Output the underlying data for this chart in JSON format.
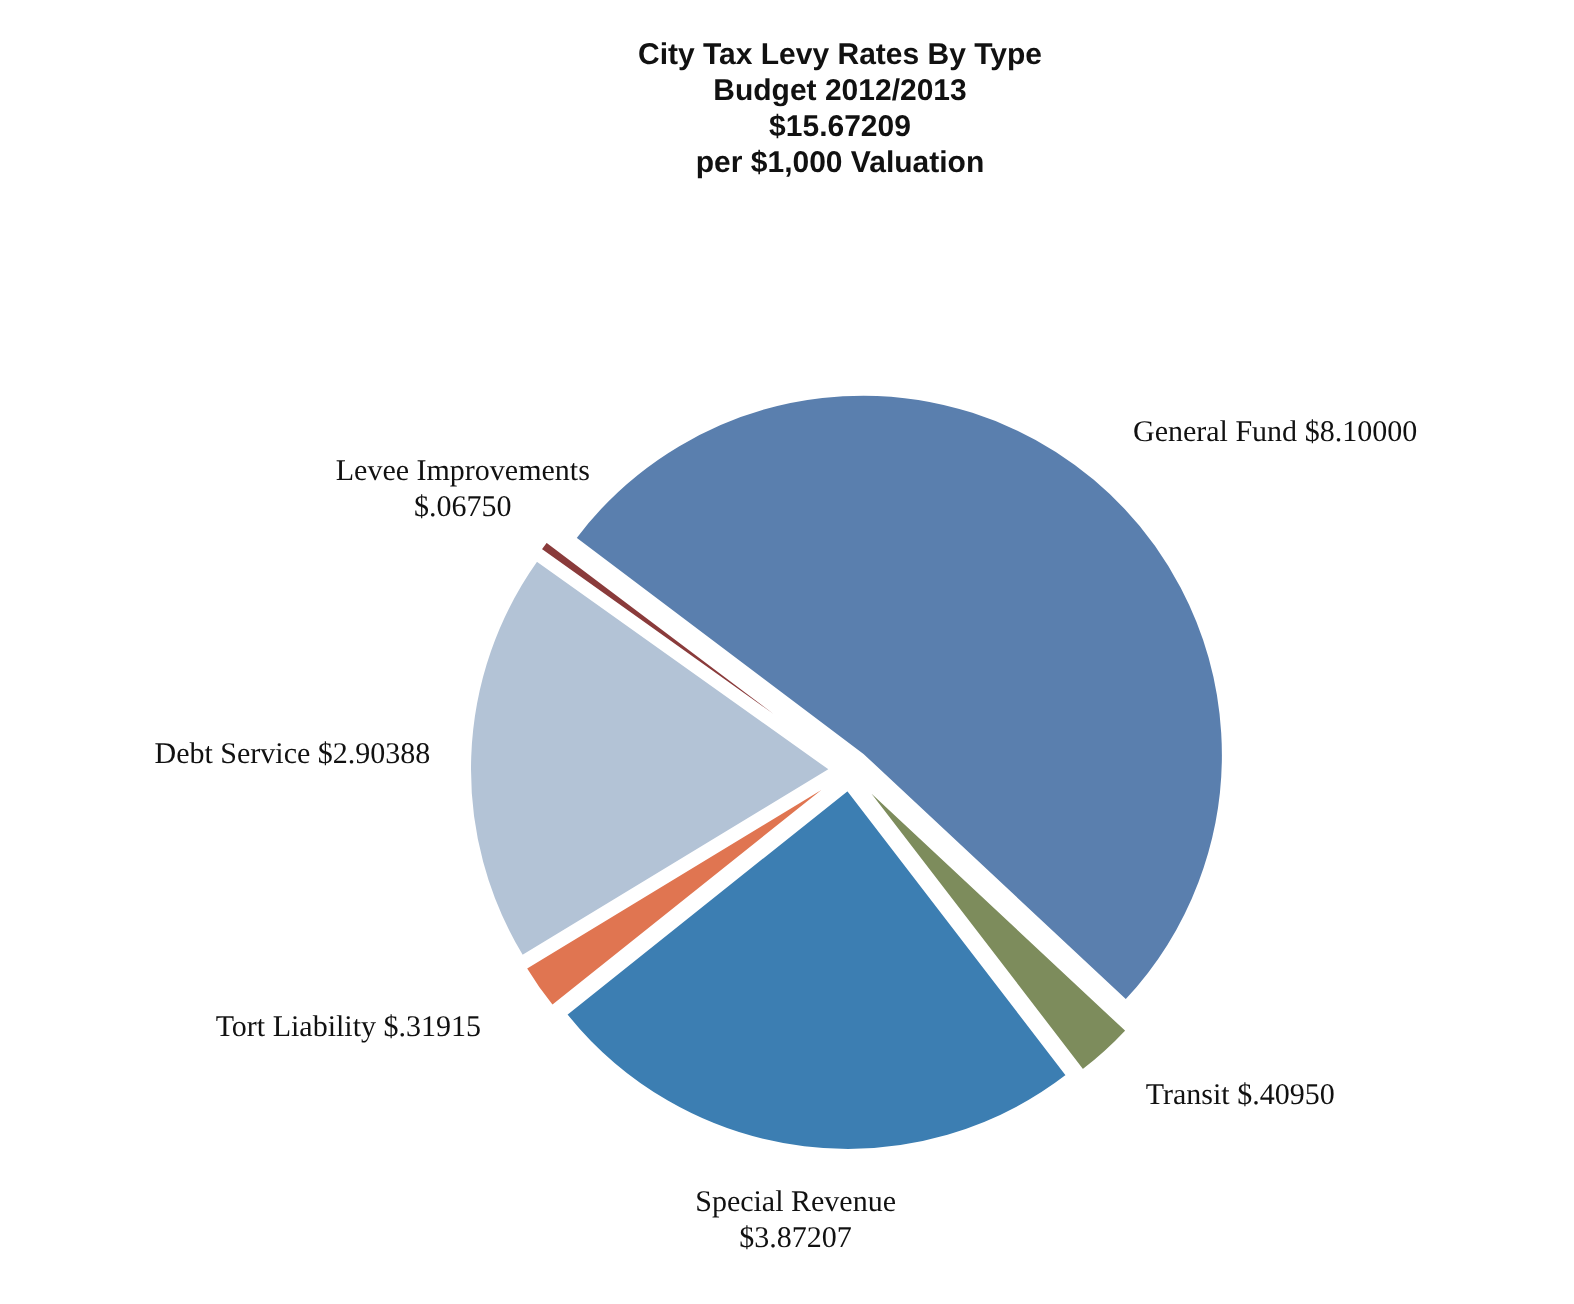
{
  "chart_data": {
    "type": "pie",
    "title": "City Tax Levy Rates By Type",
    "subtitle": "Budget 2012/2013",
    "annotations": [
      "$15.67209",
      "per $1,000 Valuation"
    ],
    "categories": [
      "General Fund",
      "Transit",
      "Special Revenue",
      "Tort Liability",
      "Debt Service",
      "Levee Improvements"
    ],
    "values": [
      8.1,
      0.4095,
      3.87207,
      0.31915,
      2.90388,
      0.0675
    ],
    "value_labels": [
      "$8.10000",
      "$.40950",
      "$3.87207",
      "$.31915",
      "$2.90388",
      "$.06750"
    ],
    "colors": [
      "#5a7fae",
      "#7d8c5c",
      "#3c7eb2",
      "#e07551",
      "#b3c3d6",
      "#8a3b3b"
    ]
  }
}
